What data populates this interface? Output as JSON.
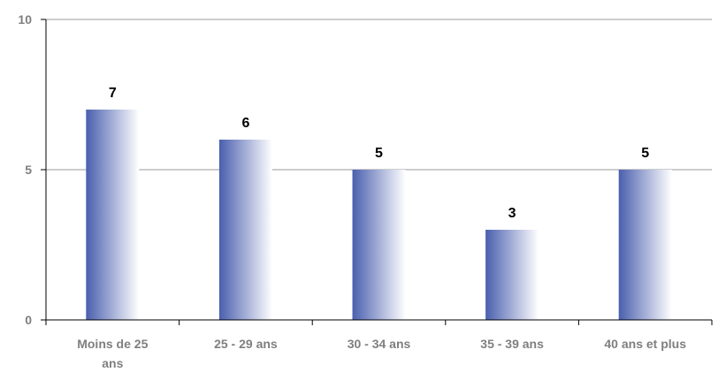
{
  "chart_data": {
    "type": "bar",
    "categories": [
      [
        "Moins de 25",
        "ans"
      ],
      [
        "25 - 29 ans"
      ],
      [
        "30 - 34 ans"
      ],
      [
        "35 - 39 ans"
      ],
      [
        "40 ans et plus"
      ]
    ],
    "values": [
      7,
      6,
      5,
      3,
      5
    ],
    "data_labels": [
      "7",
      "6",
      "5",
      "3",
      "5"
    ],
    "ylim": [
      0,
      10
    ],
    "yticks": [
      0,
      5,
      10
    ],
    "ytick_labels": [
      "0",
      "5",
      "10"
    ],
    "grid": true,
    "bar_color_dark": "#4a5fae",
    "bar_color_light": "#ffffff",
    "axis_color": "#000000",
    "grid_color": "#9a9a9a"
  }
}
